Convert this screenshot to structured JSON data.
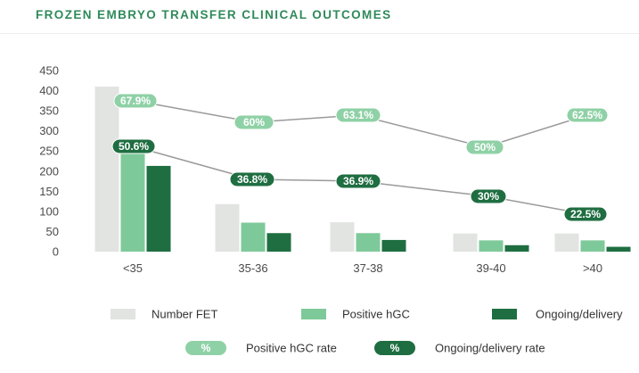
{
  "chart_data": {
    "type": "bar",
    "title": "FROZEN EMBRYO TRANSFER CLINICAL OUTCOMES",
    "categories": [
      "<35",
      "35-36",
      "37-38",
      "39-40",
      ">40"
    ],
    "ylim": [
      0,
      450
    ],
    "yticks": [
      0,
      50,
      100,
      150,
      200,
      250,
      300,
      350,
      400,
      450
    ],
    "grid": false,
    "series": [
      {
        "name": "Number FET",
        "values": [
          410,
          118,
          73,
          45,
          45
        ],
        "color": "#e1e4e1"
      },
      {
        "name": "Positive hGC",
        "values": [
          278,
          72,
          46,
          28,
          28
        ],
        "color": "#7ec99a"
      },
      {
        "name": "Ongoing/delivery",
        "values": [
          213,
          46,
          29,
          16,
          12
        ],
        "color": "#1f6e42"
      }
    ],
    "lines": [
      {
        "name": "Positive hGC rate",
        "labels": [
          "67.9%",
          "60%",
          "63.1%",
          "50%",
          "62.5%"
        ],
        "color": "#8fd1a6",
        "text_color": "#ffffff"
      },
      {
        "name": "Ongoing/delivery rate",
        "labels": [
          "50.6%",
          "36.8%",
          "36.9%",
          "30%",
          "22.5%"
        ],
        "color": "#1f6e42",
        "text_color": "#ffffff"
      }
    ],
    "line_marker_symbol": "%",
    "line_color": "#9a9a9a",
    "legend_position": "bottom"
  }
}
